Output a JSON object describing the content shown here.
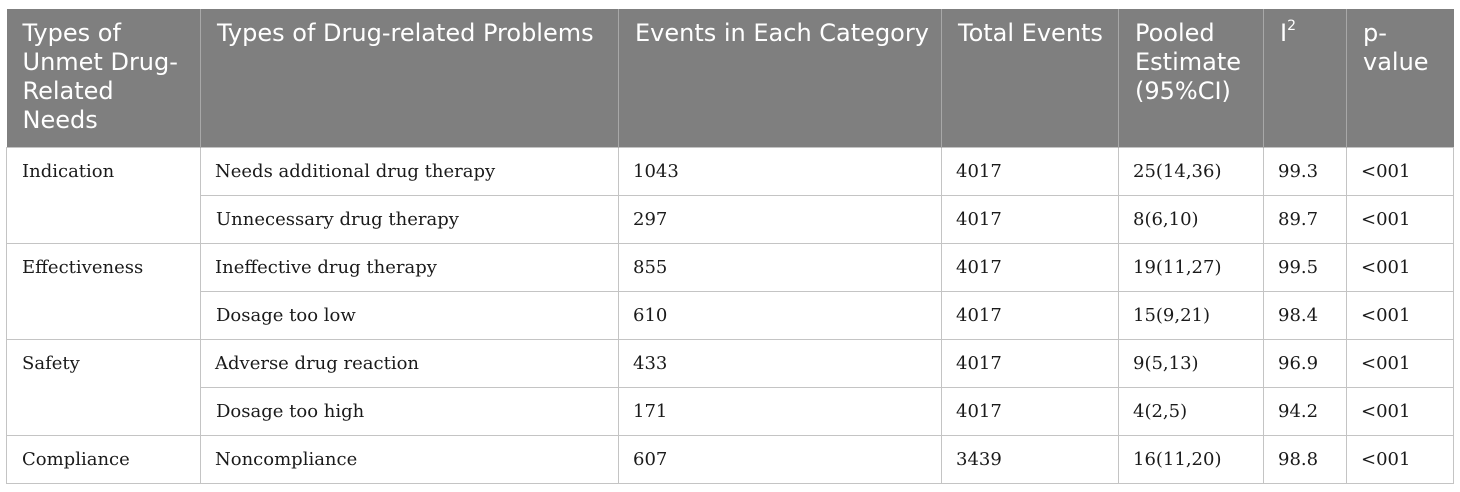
{
  "table": {
    "headers": [
      "Types of Unmet Drug-Related Needs",
      "Types of Drug-related Problems",
      "Events in Each Category",
      "Total Events",
      "Pooled Estimate (95%CI)",
      "I",
      "p-value"
    ],
    "header_superscript": "2",
    "groups": [
      {
        "name": "Indication",
        "rows": [
          [
            "Needs additional drug therapy",
            "1043",
            "4017",
            "25(14,36)",
            "99.3",
            "<001"
          ],
          [
            "Unnecessary drug therapy",
            "297",
            "4017",
            "8(6,10)",
            "89.7",
            "<001"
          ]
        ]
      },
      {
        "name": "Effectiveness",
        "rows": [
          [
            "Ineffective drug therapy",
            "855",
            "4017",
            "19(11,27)",
            "99.5",
            "<001"
          ],
          [
            "Dosage too low",
            "610",
            "4017",
            "15(9,21)",
            "98.4",
            "<001"
          ]
        ]
      },
      {
        "name": "Safety",
        "rows": [
          [
            "Adverse drug reaction",
            "433",
            "4017",
            "9(5,13)",
            "96.9",
            "<001"
          ],
          [
            "Dosage too high",
            "171",
            "4017",
            "4(2,5)",
            "94.2",
            "<001"
          ]
        ]
      },
      {
        "name": "Compliance",
        "rows": [
          [
            "Noncompliance",
            "607",
            "3439",
            "16(11,20)",
            "98.8",
            "<001"
          ]
        ]
      }
    ]
  }
}
